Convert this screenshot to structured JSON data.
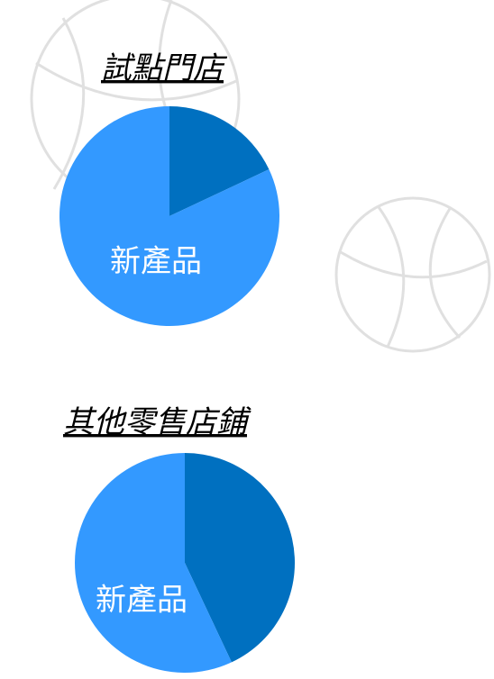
{
  "chart_data": [
    {
      "type": "pie",
      "title": "試點門店",
      "categories": [
        null,
        "新產品"
      ],
      "values": [
        18,
        82
      ],
      "colors": [
        "#0070c0",
        "#3399ff"
      ]
    },
    {
      "type": "pie",
      "title": "其他零售店鋪",
      "categories": [
        null,
        "新產品"
      ],
      "values": [
        43,
        57
      ],
      "colors": [
        "#0070c0",
        "#3399ff"
      ]
    }
  ]
}
